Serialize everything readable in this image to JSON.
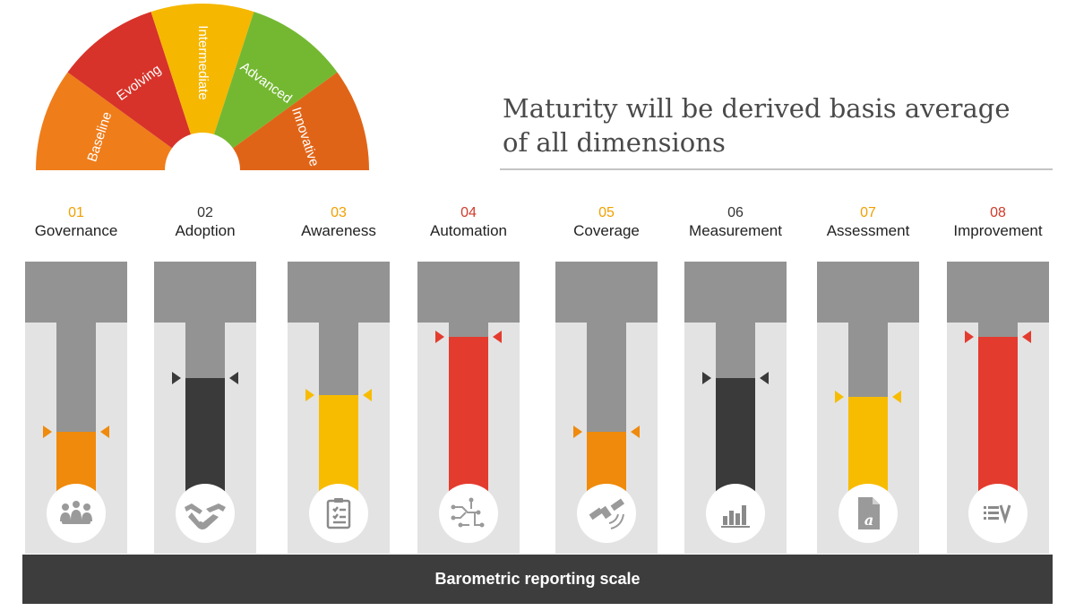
{
  "gauge": {
    "segments": [
      {
        "label": "Baseline",
        "color": "#ef7d1a"
      },
      {
        "label": "Evolving",
        "color": "#d7332a"
      },
      {
        "label": "Intermediate",
        "color": "#f5b700"
      },
      {
        "label": "Advanced",
        "color": "#74b832"
      },
      {
        "label": "Innovative",
        "color": "#e06417"
      }
    ]
  },
  "headline": {
    "line1": "Maturity will be derived basis average",
    "line2": "of all dimensions"
  },
  "dimensions": [
    {
      "number": "01",
      "name": "Governance",
      "number_color": "#f0a000",
      "fill_color": "#ef8a0c",
      "level": 0.4,
      "icon": "people-meeting-icon"
    },
    {
      "number": "02",
      "name": "Adoption",
      "number_color": "#333333",
      "fill_color": "#3a3a3a",
      "level": 0.74,
      "icon": "handshake-icon"
    },
    {
      "number": "03",
      "name": "Awareness",
      "number_color": "#f0a000",
      "fill_color": "#f7bc00",
      "level": 0.63,
      "icon": "clipboard-checklist-icon"
    },
    {
      "number": "04",
      "name": "Automation",
      "number_color": "#d03a2a",
      "fill_color": "#e43b2f",
      "level": 1.0,
      "icon": "circuit-icon"
    },
    {
      "number": "05",
      "name": "Coverage",
      "number_color": "#f0a000",
      "fill_color": "#ef8a0c",
      "level": 0.4,
      "icon": "satellite-icon"
    },
    {
      "number": "06",
      "name": "Measurement",
      "number_color": "#333333",
      "fill_color": "#3a3a3a",
      "level": 0.74,
      "icon": "bar-chart-icon"
    },
    {
      "number": "07",
      "name": "Assessment",
      "number_color": "#f0a000",
      "fill_color": "#f7bc00",
      "level": 0.62,
      "icon": "document-icon"
    },
    {
      "number": "08",
      "name": "Improvement",
      "number_color": "#d03a2a",
      "fill_color": "#e43b2f",
      "level": 1.0,
      "icon": "checklist-icon"
    }
  ],
  "scale": {
    "label": "Barometric reporting scale"
  },
  "colors": {
    "stem": "#939393",
    "panel": "#e3e3e3",
    "footer": "#3d3d3d"
  }
}
